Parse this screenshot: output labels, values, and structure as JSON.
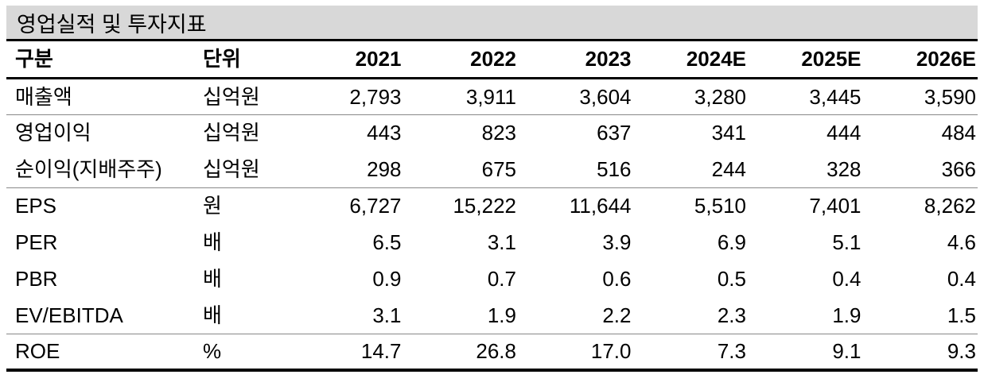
{
  "title": "영업실적 및 투자지표",
  "table": {
    "columns": [
      "구분",
      "단위",
      "2021",
      "2022",
      "2023",
      "2024E",
      "2025E",
      "2026E"
    ],
    "rows": [
      {
        "label": "매출액",
        "unit": "십억원",
        "values": [
          "2,793",
          "3,911",
          "3,604",
          "3,280",
          "3,445",
          "3,590"
        ]
      },
      {
        "label": "영업이익",
        "unit": "십억원",
        "values": [
          "443",
          "823",
          "637",
          "341",
          "444",
          "484"
        ]
      },
      {
        "label": "순이익(지배주주)",
        "unit": "십억원",
        "values": [
          "298",
          "675",
          "516",
          "244",
          "328",
          "366"
        ]
      },
      {
        "label": "EPS",
        "unit": "원",
        "values": [
          "6,727",
          "15,222",
          "11,644",
          "5,510",
          "7,401",
          "8,262"
        ]
      },
      {
        "label": "PER",
        "unit": "배",
        "values": [
          "6.5",
          "3.1",
          "3.9",
          "6.9",
          "5.1",
          "4.6"
        ]
      },
      {
        "label": "PBR",
        "unit": "배",
        "values": [
          "0.9",
          "0.7",
          "0.6",
          "0.5",
          "0.4",
          "0.4"
        ]
      },
      {
        "label": "EV/EBITDA",
        "unit": "배",
        "values": [
          "3.1",
          "1.9",
          "2.2",
          "2.3",
          "1.9",
          "1.5"
        ]
      },
      {
        "label": "ROE",
        "unit": "%",
        "values": [
          "14.7",
          "26.8",
          "17.0",
          "7.3",
          "9.1",
          "9.3"
        ]
      }
    ]
  },
  "colors": {
    "title_background": "#d8d8d8",
    "heavy_rule": "#000000",
    "thin_rule": "#888888",
    "text": "#000000"
  }
}
